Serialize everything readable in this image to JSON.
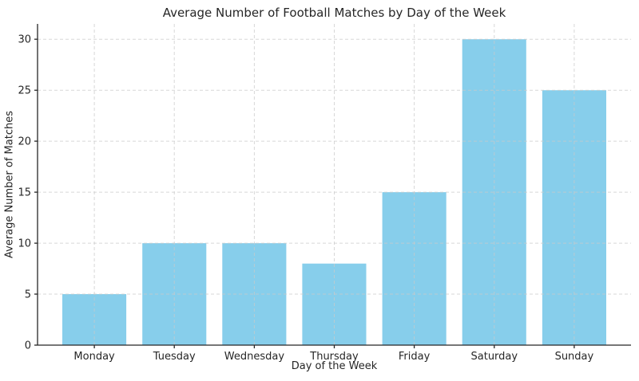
{
  "chart_data": {
    "type": "bar",
    "title": "Average Number of Football Matches by Day of the Week",
    "xlabel": "Day of the Week",
    "ylabel": "Average Number of Matches",
    "categories": [
      "Monday",
      "Tuesday",
      "Wednesday",
      "Thursday",
      "Friday",
      "Saturday",
      "Sunday"
    ],
    "values": [
      5,
      10,
      10,
      8,
      15,
      30,
      25
    ],
    "yticks": [
      0,
      5,
      10,
      15,
      20,
      25,
      30
    ],
    "ylim": [
      0,
      31.5
    ],
    "bar_width_ratio": 0.8,
    "grid": "dashed",
    "legend": "none",
    "colors": {
      "bar": "#87CEEB",
      "grid": "#c9c9c9",
      "axis": "#262626",
      "text": "#262626",
      "background": "#ffffff"
    }
  }
}
